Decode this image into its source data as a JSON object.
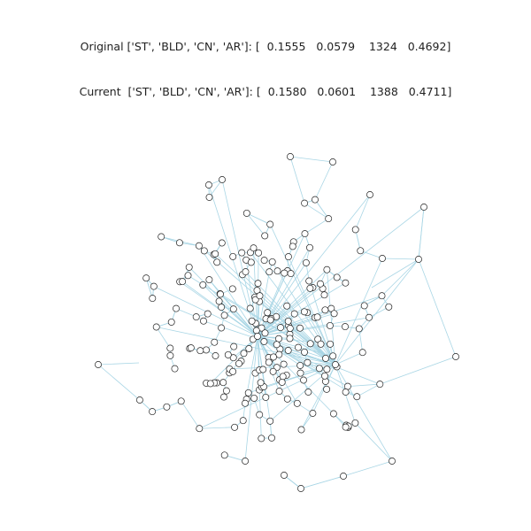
{
  "header": {
    "original": "Original ['ST', 'BLD', 'CN', 'AR']: [  0.1555   0.0579    1324   0.4692]",
    "current": "Current  ['ST', 'BLD', 'CN', 'AR']: [  0.1580   0.0601    1388   0.4711]"
  },
  "colors": {
    "edge": "#a9d6e5",
    "node_stroke": "#222222",
    "node_fill": "#ffffff"
  }
}
